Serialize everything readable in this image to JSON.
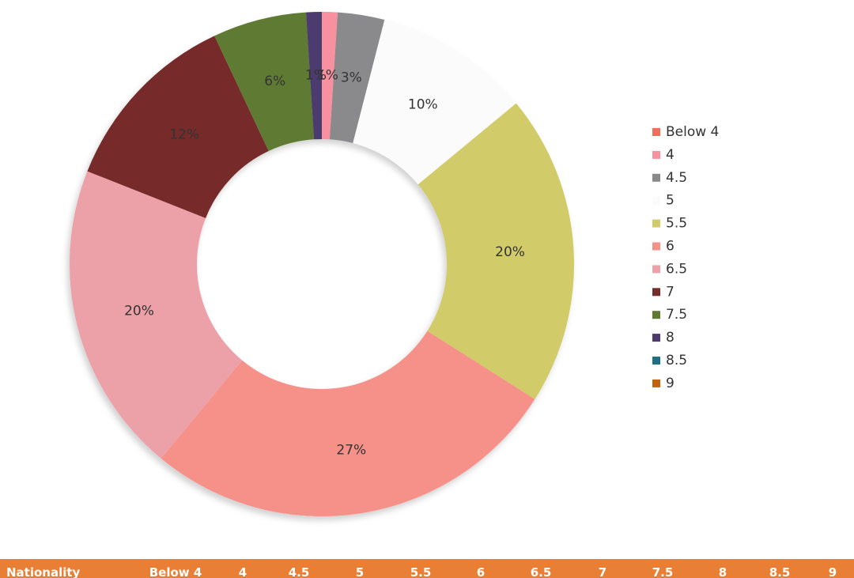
{
  "chart_data": {
    "type": "pie",
    "donut": true,
    "categories": [
      "Below 4",
      "4",
      "4.5",
      "5",
      "5.5",
      "6",
      "6.5",
      "7",
      "7.5",
      "8",
      "8.5",
      "9"
    ],
    "values": [
      0,
      1,
      3,
      10,
      20,
      27,
      20,
      12,
      6,
      1,
      0,
      0
    ],
    "slice_labels": [
      "",
      "1%",
      "3%",
      "10%",
      "20%",
      "27%",
      "20%",
      "12%",
      "6%",
      "1%",
      "",
      ""
    ],
    "colors": [
      "#f26d5b",
      "#f7919f",
      "#8a8a8c",
      "#fbfbfb",
      "#d2cb6b",
      "#f6918a",
      "#eca0a7",
      "#762c29",
      "#5e7a31",
      "#4c3a6e",
      "#1f6f87",
      "#c3620e"
    ],
    "legend": {
      "position": "right"
    }
  },
  "table": {
    "header_bg": "#e97f34",
    "headers": [
      "Nationality",
      "Below 4",
      "4",
      "4.5",
      "5",
      "5.5",
      "6",
      "6.5",
      "7",
      "7.5",
      "8",
      "8.5",
      "9"
    ]
  }
}
